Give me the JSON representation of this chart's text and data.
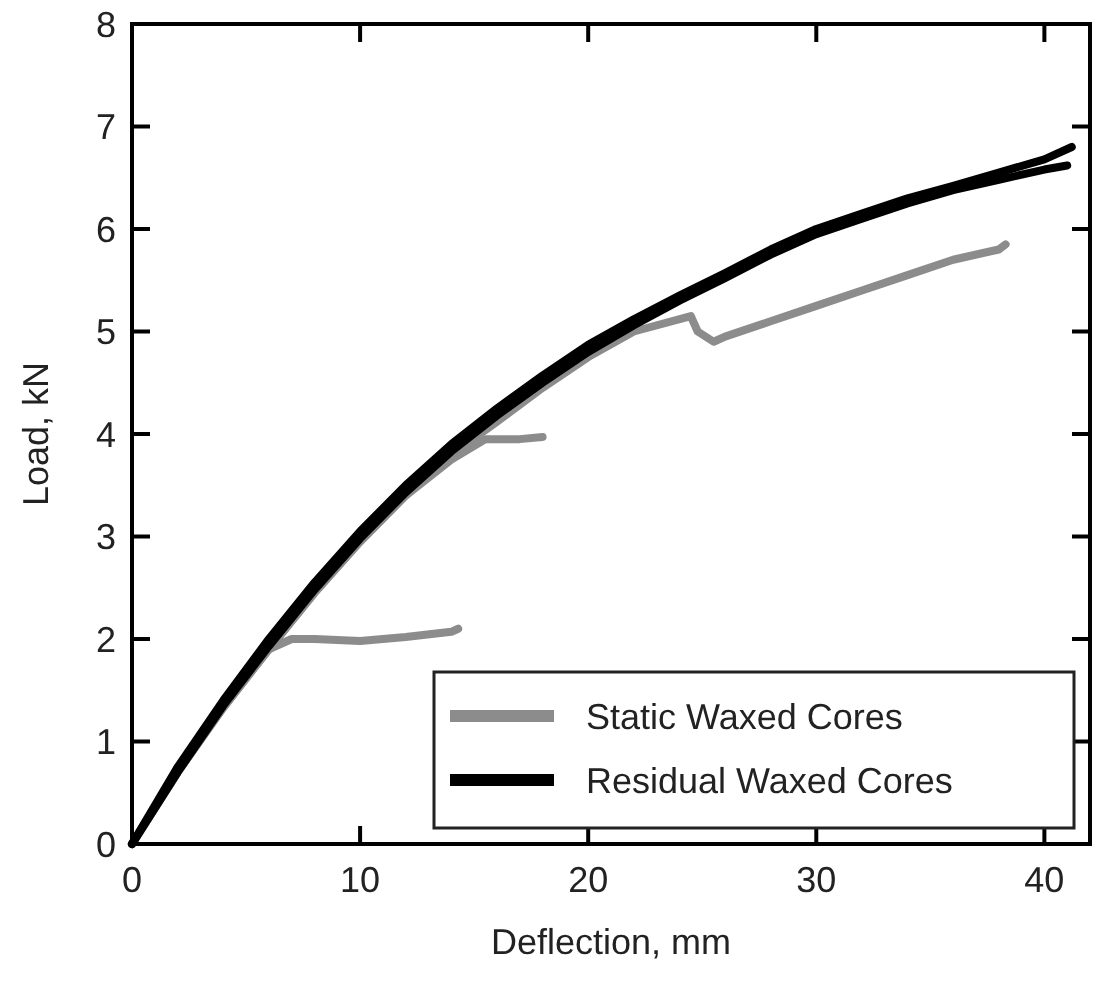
{
  "chart_data": {
    "type": "line",
    "xlabel": "Deflection, mm",
    "ylabel": "Load, kN",
    "xlim": [
      0,
      42
    ],
    "ylim": [
      0,
      8
    ],
    "xticks": [
      0,
      10,
      20,
      30,
      40
    ],
    "yticks": [
      0,
      1,
      2,
      3,
      4,
      5,
      6,
      7,
      8
    ],
    "grid": false,
    "legend": "bottom right",
    "marker": "none",
    "line_style": "solid",
    "series": [
      {
        "name": "Static Waxed Cores",
        "color": "#8c8c8c",
        "x": [
          0,
          2,
          4,
          6,
          7,
          8,
          10,
          12,
          14,
          14.3
        ],
        "values": [
          0,
          0.7,
          1.35,
          1.9,
          2.0,
          2.0,
          1.98,
          2.02,
          2.07,
          2.1
        ]
      },
      {
        "color": "#8c8c8c",
        "x": [
          0,
          2,
          4,
          6,
          8,
          10,
          12,
          14,
          15.5,
          17,
          18
        ],
        "values": [
          0,
          0.7,
          1.33,
          1.9,
          2.45,
          2.95,
          3.4,
          3.75,
          3.95,
          3.95,
          3.97
        ]
      },
      {
        "color": "#8c8c8c",
        "x": [
          0,
          2,
          4,
          6,
          8,
          10,
          12,
          14,
          16,
          18,
          20,
          22,
          24.5,
          24.8,
          25.5,
          26,
          28,
          30,
          32,
          34,
          36,
          38,
          38.3
        ],
        "values": [
          0,
          0.7,
          1.33,
          1.9,
          2.45,
          2.95,
          3.4,
          3.8,
          4.12,
          4.45,
          4.75,
          5.0,
          5.15,
          5.0,
          4.9,
          4.95,
          5.1,
          5.25,
          5.4,
          5.55,
          5.7,
          5.8,
          5.85
        ]
      },
      {
        "name": "Residual Waxed Cores",
        "color": "#000000",
        "x": [
          0,
          2,
          4,
          6,
          8,
          10,
          12,
          14,
          16,
          18,
          20,
          22,
          24,
          26,
          28,
          30,
          32,
          34,
          36,
          38,
          40,
          41.2
        ],
        "values": [
          0,
          0.75,
          1.4,
          2.0,
          2.55,
          3.05,
          3.5,
          3.9,
          4.25,
          4.57,
          4.87,
          5.12,
          5.35,
          5.57,
          5.8,
          6.0,
          6.15,
          6.3,
          6.42,
          6.55,
          6.68,
          6.8
        ]
      },
      {
        "color": "#000000",
        "x": [
          0,
          2,
          4,
          6,
          8,
          10,
          12,
          14,
          16,
          18,
          20,
          22,
          24,
          26,
          28,
          30,
          32,
          34,
          36,
          38,
          40,
          41
        ],
        "values": [
          0,
          0.7,
          1.35,
          1.93,
          2.48,
          2.98,
          3.43,
          3.83,
          4.18,
          4.5,
          4.8,
          5.06,
          5.3,
          5.52,
          5.75,
          5.95,
          6.1,
          6.25,
          6.38,
          6.48,
          6.58,
          6.62
        ]
      }
    ]
  }
}
